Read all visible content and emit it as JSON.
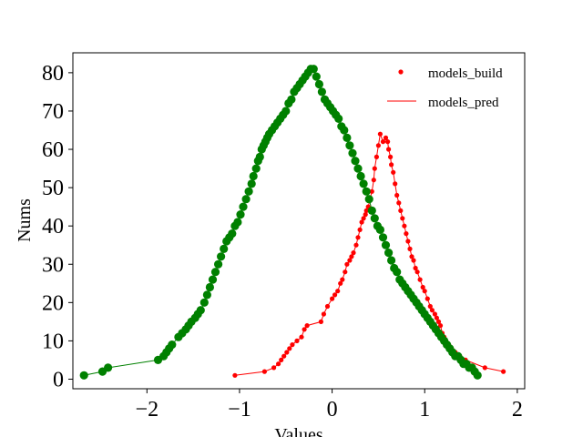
{
  "chart_data": {
    "type": "line",
    "xlabel": "Values",
    "ylabel": "Nums",
    "xlim": [
      -2.8,
      2.08
    ],
    "ylim": [
      -2.5,
      85.2
    ],
    "x_ticks": [
      -2,
      -1,
      0,
      1,
      2
    ],
    "x_tick_labels": [
      "−2",
      "−1",
      "0",
      "1",
      "2"
    ],
    "y_ticks": [
      0,
      10,
      20,
      30,
      40,
      50,
      60,
      70,
      80
    ],
    "y_tick_labels": [
      "0",
      "10",
      "20",
      "30",
      "40",
      "50",
      "60",
      "70",
      "80"
    ],
    "grid": false,
    "legend_position": "top-right",
    "legend": [
      {
        "label": "models_build",
        "marker": "dot",
        "color": "#ff0000"
      },
      {
        "label": "models_pred",
        "marker": "line",
        "color": "#ff0000"
      }
    ],
    "series": [
      {
        "name": "models_build",
        "color": "#ff0000",
        "marker_size": "small",
        "x": [
          -1.05,
          -0.73,
          -0.63,
          -0.58,
          -0.55,
          -0.52,
          -0.49,
          -0.46,
          -0.43,
          -0.38,
          -0.33,
          -0.3,
          -0.27,
          -0.12,
          -0.09,
          -0.05,
          0.0,
          0.03,
          0.06,
          0.09,
          0.11,
          0.14,
          0.16,
          0.19,
          0.21,
          0.23,
          0.26,
          0.28,
          0.3,
          0.32,
          0.34,
          0.36,
          0.37,
          0.39,
          0.41,
          0.43,
          0.45,
          0.46,
          0.48,
          0.5,
          0.52,
          0.55,
          0.58,
          0.6,
          0.61,
          0.63,
          0.64,
          0.66,
          0.68,
          0.7,
          0.72,
          0.74,
          0.76,
          0.78,
          0.8,
          0.82,
          0.84,
          0.86,
          0.88,
          0.9,
          0.92,
          0.95,
          0.98,
          1.0,
          1.03,
          1.06,
          1.08,
          1.11,
          1.13,
          1.15,
          1.17,
          1.19,
          1.21,
          1.23,
          1.26,
          1.29,
          1.33,
          1.38,
          1.44,
          1.65,
          1.85
        ],
        "y": [
          1,
          2,
          3,
          4,
          5,
          6,
          7,
          8,
          9,
          10,
          11,
          13,
          14,
          15,
          17,
          19,
          21,
          22,
          23,
          25,
          26,
          28,
          30,
          31,
          32,
          33,
          35,
          37,
          39,
          41,
          42,
          43,
          44,
          45,
          47,
          49,
          52,
          55,
          58,
          61,
          64,
          62,
          63,
          62,
          60,
          58,
          56,
          54,
          51,
          48,
          46,
          44,
          42,
          40,
          38,
          36,
          34,
          32,
          31,
          29,
          28,
          26,
          24,
          23,
          21,
          19,
          18,
          17,
          16,
          15,
          14,
          12,
          11,
          10,
          9,
          8,
          7,
          6,
          5,
          3,
          2
        ]
      },
      {
        "name": "",
        "color": "#008000",
        "marker_size": "large",
        "x": [
          -2.68,
          -2.48,
          -2.42,
          -1.88,
          -1.82,
          -1.79,
          -1.76,
          -1.73,
          -1.66,
          -1.62,
          -1.58,
          -1.55,
          -1.52,
          -1.48,
          -1.45,
          -1.42,
          -1.38,
          -1.35,
          -1.32,
          -1.29,
          -1.26,
          -1.23,
          -1.2,
          -1.17,
          -1.14,
          -1.11,
          -1.08,
          -1.05,
          -1.02,
          -0.99,
          -0.96,
          -0.93,
          -0.9,
          -0.87,
          -0.85,
          -0.82,
          -0.8,
          -0.78,
          -0.76,
          -0.74,
          -0.72,
          -0.7,
          -0.68,
          -0.65,
          -0.62,
          -0.59,
          -0.56,
          -0.53,
          -0.5,
          -0.47,
          -0.44,
          -0.41,
          -0.38,
          -0.35,
          -0.32,
          -0.29,
          -0.26,
          -0.23,
          -0.2,
          -0.17,
          -0.14,
          -0.11,
          -0.08,
          -0.05,
          -0.02,
          0.01,
          0.04,
          0.07,
          0.1,
          0.13,
          0.16,
          0.19,
          0.22,
          0.25,
          0.28,
          0.31,
          0.34,
          0.37,
          0.4,
          0.43,
          0.46,
          0.49,
          0.52,
          0.55,
          0.58,
          0.61,
          0.64,
          0.67,
          0.7,
          0.73,
          0.76,
          0.79,
          0.82,
          0.85,
          0.88,
          0.91,
          0.94,
          0.97,
          1.0,
          1.03,
          1.06,
          1.09,
          1.12,
          1.15,
          1.18,
          1.21,
          1.24,
          1.27,
          1.3,
          1.33,
          1.36,
          1.39,
          1.42,
          1.45,
          1.48,
          1.51,
          1.54,
          1.57
        ],
        "y": [
          1,
          2,
          3,
          5,
          6,
          7,
          8,
          9,
          11,
          12,
          13,
          14,
          15,
          16,
          17,
          18,
          20,
          22,
          24,
          26,
          28,
          30,
          32,
          34,
          36,
          37,
          38,
          40,
          41,
          43,
          45,
          47,
          49,
          51,
          53,
          55,
          57,
          58,
          60,
          61,
          62,
          63,
          64,
          65,
          66,
          67,
          68,
          69,
          70,
          72,
          73,
          75,
          76,
          77,
          78,
          79,
          80,
          81,
          81,
          79,
          77,
          75,
          73,
          72,
          71,
          70,
          69,
          68,
          66,
          65,
          63,
          61,
          59,
          57,
          55,
          53,
          51,
          49,
          47,
          44,
          42,
          40,
          39,
          37,
          35,
          33,
          31,
          29,
          28,
          26,
          25,
          24,
          23,
          22,
          21,
          20,
          19,
          18,
          17,
          16,
          15,
          14,
          13,
          12,
          11,
          10,
          9,
          8,
          7,
          6,
          6,
          5,
          4,
          4,
          3,
          3,
          2,
          1
        ]
      }
    ]
  }
}
